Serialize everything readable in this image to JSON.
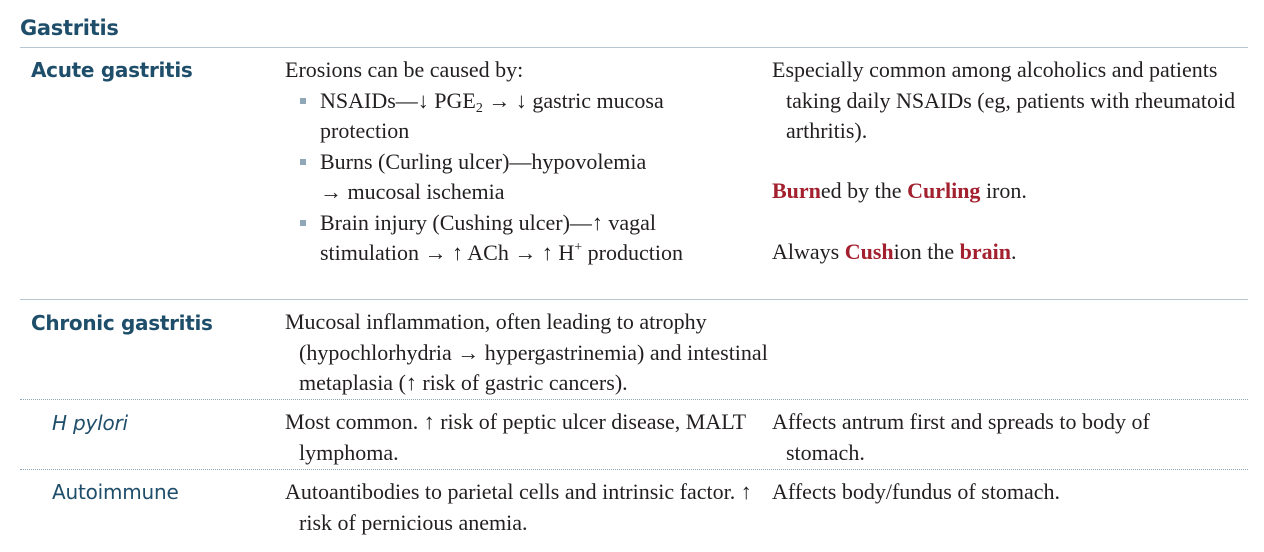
{
  "title": "Gastritis",
  "sections": {
    "acute": {
      "label": "Acute gastritis",
      "intro": "Erosions can be caused by:",
      "bullets": [
        {
          "lead": "NSAIDs—",
          "arrow1": "↓",
          "mid1": " PGE",
          "sub": "2",
          "mid2": " → ",
          "arrow2": "↓",
          "tail": " gastric mucosa protection"
        },
        {
          "text1": "Burns (Curling ulcer)—hypovolemia",
          "text2": "→ mucosal ischemia"
        },
        {
          "text1": "Brain injury (Cushing ulcer)—",
          "up1": "↑",
          "text2": " vagal stimulation → ",
          "up2": "↑",
          "text3": " ACh → ",
          "up3": "↑",
          "text4": " H",
          "sup": "+",
          "text5": " production"
        }
      ],
      "note": "Especially common among alcoholics and patients taking daily NSAIDs (eg, patients with rheumatoid arthritis).",
      "mnemonic1": {
        "hl1": "Burn",
        "t1": "ed by the ",
        "hl2": "Curling",
        "t2": " iron."
      },
      "mnemonic2": {
        "t1": "Always ",
        "hl1": "Cush",
        "t2": "ion the ",
        "hl2": "brain",
        "t3": "."
      }
    },
    "chronic": {
      "label": "Chronic gastritis",
      "text": {
        "t1": "Mucosal inflammation, often leading to atrophy (hypochlorhydria → hypergastrinemia) and intestinal metaplasia (",
        "up": "↑",
        "t2": " risk of gastric cancers)."
      }
    },
    "hpylori": {
      "label": "H pylori",
      "text": {
        "t1": "Most common. ",
        "up": "↑",
        "t2": " risk of peptic ulcer disease, MALT lymphoma."
      },
      "note": "Affects antrum first and spreads to body of stomach."
    },
    "autoimmune": {
      "label": "Autoimmune",
      "text": {
        "t1": "Autoantibodies to parietal cells and intrinsic factor. ",
        "up": "↑",
        "t2": " risk of pernicious anemia."
      },
      "note": "Affects body/fundus of stomach."
    }
  }
}
